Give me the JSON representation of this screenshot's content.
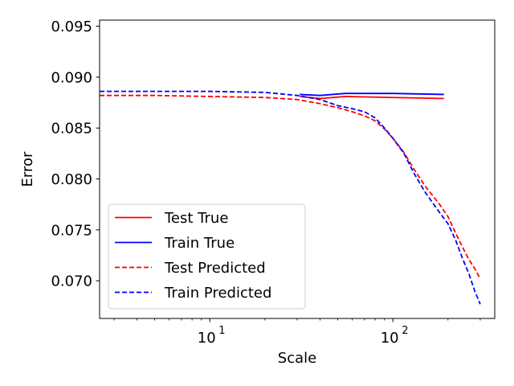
{
  "chart_data": {
    "type": "line",
    "title": "",
    "xlabel": "Scale",
    "ylabel": "Error",
    "xscale": "log",
    "xlim": [
      2.5,
      360
    ],
    "ylim": [
      0.0663,
      0.0956
    ],
    "xticks": [
      {
        "value": 10,
        "base": "10",
        "exp": "1"
      },
      {
        "value": 100,
        "base": "10",
        "exp": "2"
      }
    ],
    "yticks": [
      {
        "value": 0.07,
        "label": "0.070"
      },
      {
        "value": 0.075,
        "label": "0.075"
      },
      {
        "value": 0.08,
        "label": "0.080"
      },
      {
        "value": 0.085,
        "label": "0.085"
      },
      {
        "value": 0.09,
        "label": "0.090"
      },
      {
        "value": 0.095,
        "label": "0.095"
      }
    ],
    "grid": false,
    "legend_position": "lower-left",
    "series": [
      {
        "name": "Test True",
        "color": "#ff0000",
        "style": "solid",
        "x": [
          31,
          40,
          55,
          100,
          190
        ],
        "y": [
          0.0881,
          0.0879,
          0.0881,
          0.088,
          0.0879
        ]
      },
      {
        "name": "Train True",
        "color": "#0000ff",
        "style": "solid",
        "x": [
          31,
          40,
          55,
          100,
          190
        ],
        "y": [
          0.0883,
          0.0882,
          0.0884,
          0.0884,
          0.0883
        ]
      },
      {
        "name": "Test Predicted",
        "color": "#ff0000",
        "style": "dashed",
        "x": [
          2.5,
          5,
          10,
          20,
          30,
          40,
          50,
          60,
          70,
          80,
          90,
          100,
          115,
          130,
          150,
          180,
          200,
          220,
          240,
          260,
          280,
          300
        ],
        "y": [
          0.0882,
          0.0882,
          0.0881,
          0.088,
          0.0878,
          0.0874,
          0.087,
          0.0866,
          0.0862,
          0.0857,
          0.0849,
          0.084,
          0.0826,
          0.081,
          0.0793,
          0.0775,
          0.0763,
          0.0747,
          0.0733,
          0.0721,
          0.0712,
          0.0702
        ]
      },
      {
        "name": "Train Predicted",
        "color": "#0000ff",
        "style": "dashed",
        "x": [
          2.5,
          5,
          10,
          20,
          30,
          40,
          50,
          60,
          70,
          80,
          90,
          100,
          115,
          130,
          150,
          180,
          200,
          220,
          240,
          260,
          280,
          300
        ],
        "y": [
          0.0886,
          0.0886,
          0.0886,
          0.0885,
          0.0882,
          0.0878,
          0.0872,
          0.0869,
          0.0866,
          0.086,
          0.085,
          0.084,
          0.0825,
          0.0806,
          0.0787,
          0.0767,
          0.0756,
          0.074,
          0.0722,
          0.0707,
          0.069,
          0.0677
        ]
      }
    ]
  }
}
